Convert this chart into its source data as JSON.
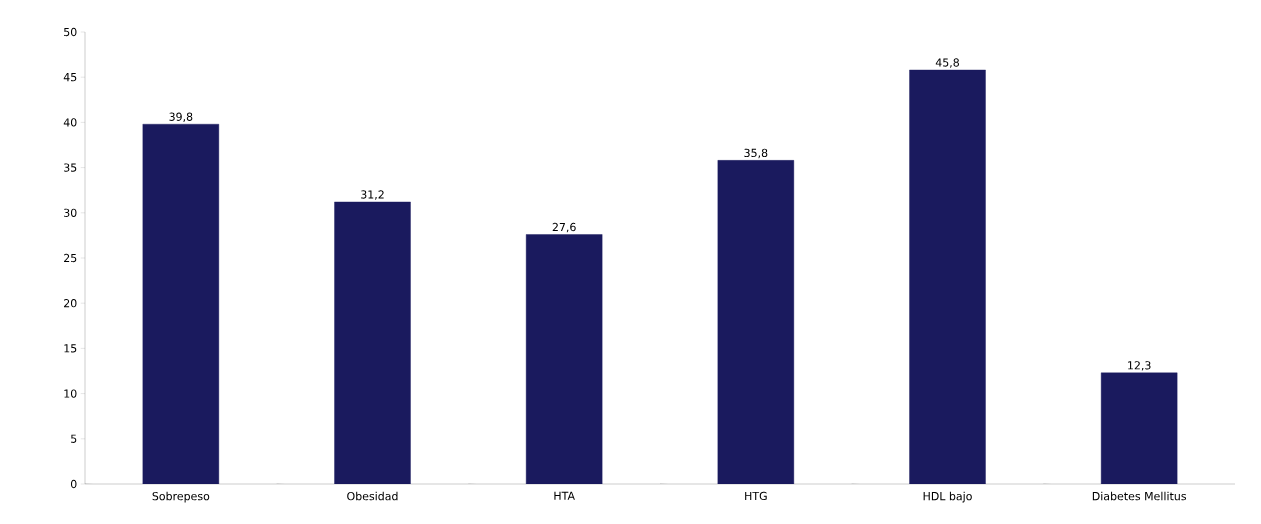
{
  "chart_data": {
    "type": "bar",
    "categories": [
      "Sobrepeso",
      "Obesidad",
      "HTA",
      "HTG",
      "HDL bajo",
      "Diabetes Mellitus"
    ],
    "values": [
      39.8,
      31.2,
      27.6,
      35.8,
      45.8,
      12.3
    ],
    "value_labels": [
      "39,8",
      "31,2",
      "27,6",
      "35,8",
      "45,8",
      "12,3"
    ],
    "color": "#1a1a5e",
    "ylim": [
      0,
      50
    ],
    "yticks": [
      0,
      5,
      10,
      15,
      20,
      25,
      30,
      35,
      40,
      45,
      50
    ],
    "grid": false
  }
}
